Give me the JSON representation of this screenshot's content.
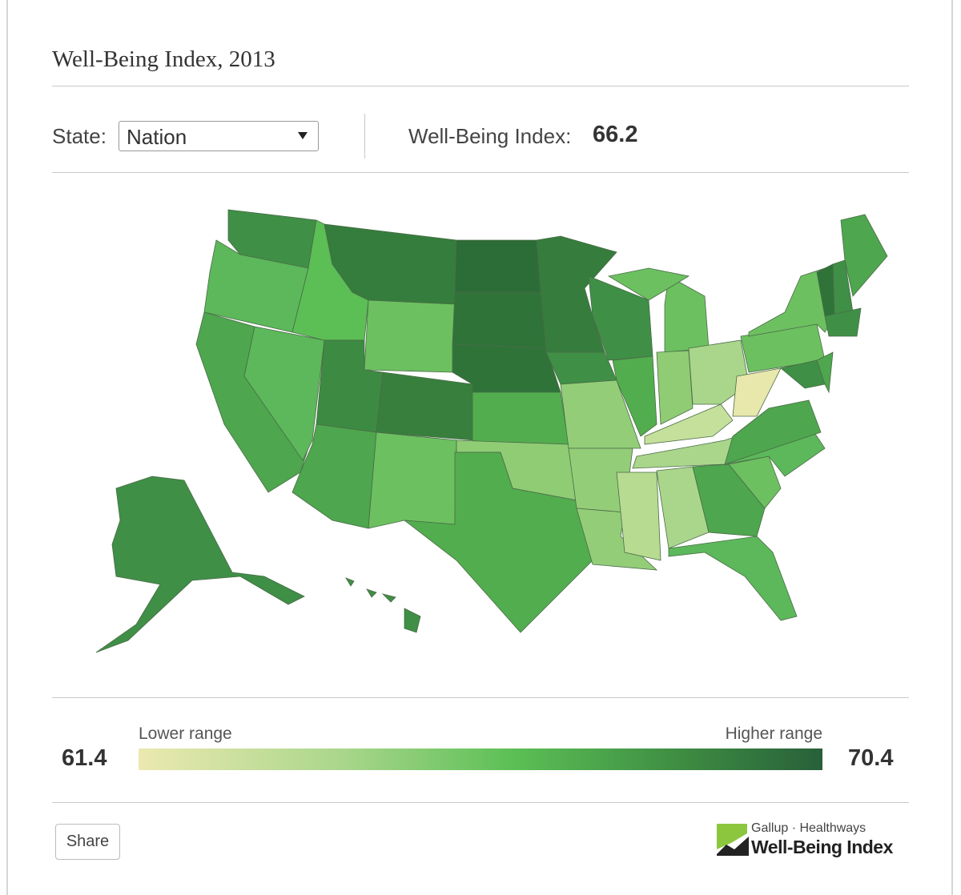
{
  "header": {
    "title": "Well-Being Index, 2013"
  },
  "controls": {
    "state_label": "State:",
    "state_value": "Nation",
    "index_label": "Well-Being Index:",
    "index_value": 66.2
  },
  "legend": {
    "low_label": "Lower range",
    "high_label": "Higher range",
    "min": 61.4,
    "max": 70.4
  },
  "footer": {
    "share": "Share",
    "logo_top": "Gallup · Healthways",
    "logo_bottom": "Well-Being Index"
  }
}
